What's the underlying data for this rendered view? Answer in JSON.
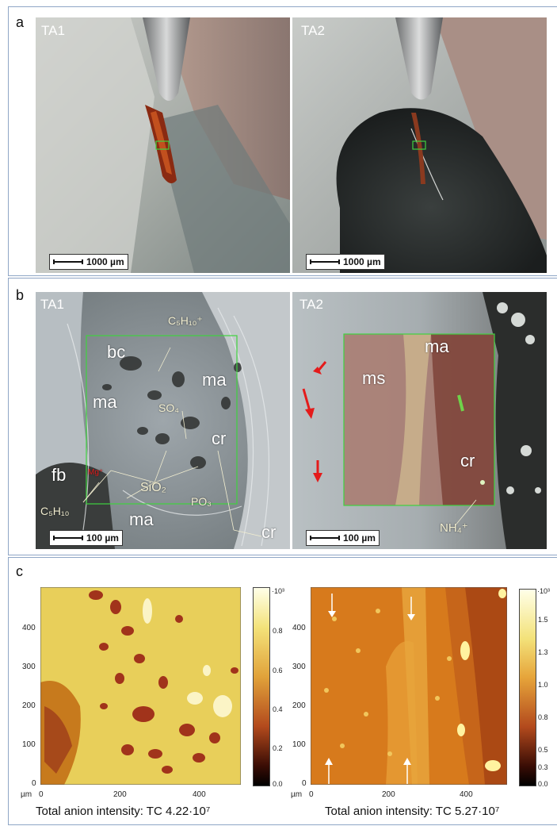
{
  "panel_a": {
    "letter": "a",
    "left": {
      "label": "TA1",
      "scale": "1000 µm"
    },
    "right": {
      "label": "TA2",
      "scale": "1000 µm"
    }
  },
  "panel_b": {
    "letter": "b",
    "left": {
      "label": "TA1",
      "scale": "100 µm",
      "annotations": {
        "c5h10_top": "C₅H₁₀⁺",
        "bc": "bc",
        "ma1": "ma",
        "ma2": "ma",
        "ma3": "ma",
        "so4": "SO₄",
        "cr1": "cr",
        "cr2": "cr",
        "fb": "fb",
        "mg": "Mg⁺",
        "sio2": "SiO₂",
        "c5h10_bottom": "C₅H₁₀",
        "po3": "PO₃"
      }
    },
    "right": {
      "label": "TA2",
      "scale": "100 µm",
      "annotations": {
        "ms": "ms",
        "ma": "ma",
        "cr": "cr",
        "nh4": "NH₄⁺"
      }
    }
  },
  "panel_c": {
    "letter": "c",
    "left": {
      "y_ticks": [
        "400",
        "300",
        "200",
        "100",
        "0"
      ],
      "x_ticks": [
        "0",
        "200",
        "400"
      ],
      "unit": "µm",
      "colorbar_ticks": [
        "·10³",
        "0.8",
        "0.6",
        "0.4",
        "0.2",
        "0.0"
      ],
      "caption": "Total anion intensity: TC 4.22·10⁷"
    },
    "right": {
      "y_ticks": [
        "400",
        "300",
        "200",
        "100",
        "0"
      ],
      "x_ticks": [
        "0",
        "200",
        "400"
      ],
      "unit": "µm",
      "colorbar_ticks": [
        "·10³",
        "1.5",
        "1.3",
        "1.0",
        "0.8",
        "0.5",
        "0.3",
        "0.0"
      ],
      "caption": "Total anion intensity: TC 5.27·10⁷"
    }
  },
  "colors": {
    "border": "#8fa6c6",
    "roi": "#3fd23f",
    "arrow_red": "#e41b1b"
  }
}
